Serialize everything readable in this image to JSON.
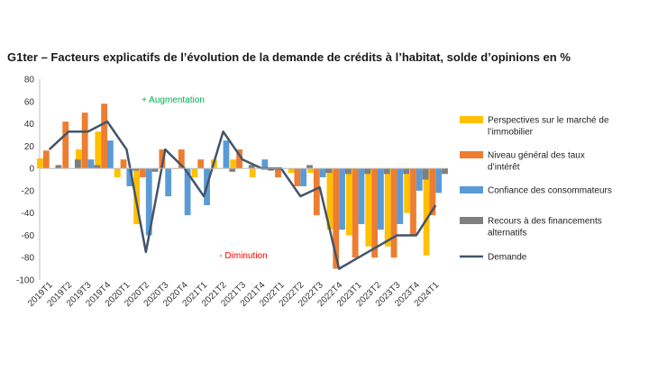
{
  "chart_data": {
    "type": "bar",
    "title": "G1ter – Facteurs explicatifs de l’évolution de la demande de crédits à l’habitat, solde d’opinions en %",
    "categories": [
      "2019T1",
      "2019T2",
      "2019T3",
      "2019T4",
      "2020T1",
      "2020T2",
      "2020T3",
      "2020T4",
      "2021T1",
      "2021T2",
      "2021T3",
      "2021T4",
      "2022T1",
      "2022T2",
      "2022T3",
      "2022T4",
      "2023T1",
      "2023T2",
      "2023T3",
      "2023T4",
      "2024T1"
    ],
    "ylim": [
      -100,
      80
    ],
    "yticks": [
      80,
      60,
      40,
      20,
      0,
      -20,
      -40,
      -60,
      -80,
      -100
    ],
    "grid": false,
    "legend_position": "right",
    "series": [
      {
        "name": "Perspectives sur le marché de l’immobilier",
        "type": "bar",
        "color": "#FFC000",
        "values": [
          9,
          0,
          17,
          33,
          -8,
          -50,
          0,
          0,
          -8,
          8,
          8,
          -8,
          0,
          -4,
          -4,
          -55,
          -60,
          -70,
          -70,
          -40,
          -78
        ]
      },
      {
        "name": "Niveau général des taux d’intérêt",
        "type": "bar",
        "color": "#ED7D31",
        "values": [
          16,
          42,
          50,
          58,
          8,
          -8,
          17,
          17,
          8,
          0,
          17,
          0,
          -8,
          -16,
          -42,
          -90,
          -80,
          -80,
          -80,
          -60,
          -42
        ]
      },
      {
        "name": "Confiance des consommateurs",
        "type": "bar",
        "color": "#5B9BD5",
        "values": [
          0,
          0,
          8,
          25,
          -16,
          -60,
          -25,
          -42,
          -33,
          25,
          0,
          8,
          0,
          -16,
          -8,
          -55,
          -50,
          -55,
          -50,
          -20,
          -22
        ]
      },
      {
        "name": "Recours à des financements alternatifs",
        "type": "bar",
        "color": "#7F7F7F",
        "values": [
          3,
          8,
          3,
          0,
          -2,
          -3,
          0,
          0,
          0,
          -3,
          3,
          -2,
          0,
          3,
          -4,
          -5,
          -5,
          -5,
          -5,
          -10,
          -5
        ]
      },
      {
        "name": "Demande",
        "type": "line",
        "color": "#44546A",
        "values": [
          17,
          33,
          33,
          42,
          17,
          -75,
          17,
          0,
          -25,
          33,
          8,
          0,
          0,
          -25,
          -17,
          -90,
          -80,
          -70,
          -60,
          -60,
          -33
        ]
      }
    ],
    "annotations": [
      {
        "text": "+ Augmentation",
        "color": "#00B050"
      },
      {
        "text": "- Diminution",
        "color": "#FF0000"
      }
    ]
  }
}
